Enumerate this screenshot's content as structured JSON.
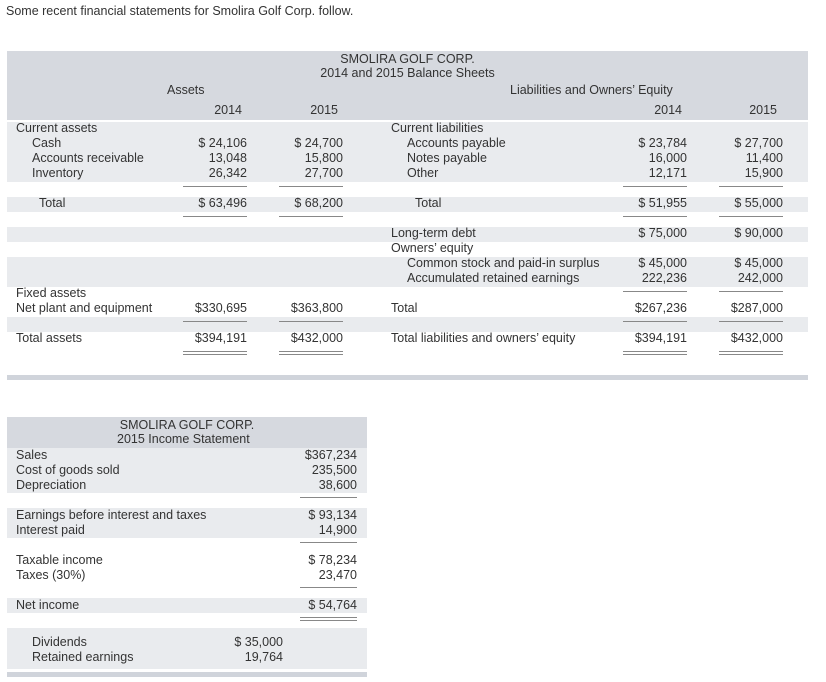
{
  "intro": "Some recent financial statements for Smolira Golf Corp. follow.",
  "balance": {
    "company": "SMOLIRA GOLF CORP.",
    "title": "2014 and 2015 Balance Sheets",
    "assets_header": "Assets",
    "liab_header": "Liabilities and Owners’ Equity",
    "year1": "2014",
    "year2": "2015",
    "current_assets": "Current assets",
    "cash": "Cash",
    "ar": "Accounts receivable",
    "inventory": "Inventory",
    "total": "Total",
    "cash_2014": "$ 24,106",
    "cash_2015": "$ 24,700",
    "ar_2014": "13,048",
    "ar_2015": "15,800",
    "inv_2014": "26,342",
    "inv_2015": "27,700",
    "ca_total_2014": "$ 63,496",
    "ca_total_2015": "$ 68,200",
    "fixed_assets": "Fixed assets",
    "net_plant": "Net plant and equipment",
    "np_2014": "$330,695",
    "np_2015": "$363,800",
    "total_assets": "Total assets",
    "ta_2014": "$394,191",
    "ta_2015": "$432,000",
    "current_liabilities": "Current liabilities",
    "ap": "Accounts payable",
    "np": "Notes payable",
    "other": "Other",
    "ap_2014": "$ 23,784",
    "ap_2015": "$ 27,700",
    "notes_2014": "16,000",
    "notes_2015": "11,400",
    "other_2014": "12,171",
    "other_2015": "15,900",
    "cl_total_2014": "$ 51,955",
    "cl_total_2015": "$ 55,000",
    "ltd": "Long-term debt",
    "ltd_2014": "$ 75,000",
    "ltd_2015": "$ 90,000",
    "owners_equity": "Owners’ equity",
    "common_stock": "Common stock and paid-in surplus",
    "cs_2014": "$ 45,000",
    "cs_2015": "$ 45,000",
    "retained": "Accumulated retained earnings",
    "re_2014": "222,236",
    "re_2015": "242,000",
    "oe_total": "Total",
    "oe_total_2014": "$267,236",
    "oe_total_2015": "$287,000",
    "total_le": "Total liabilities and owners’ equity",
    "tle_2014": "$394,191",
    "tle_2015": "$432,000"
  },
  "income": {
    "company": "SMOLIRA GOLF CORP.",
    "title": "2015 Income Statement",
    "sales": "Sales",
    "cogs": "Cost of goods sold",
    "depreciation": "Depreciation",
    "sales_v": "$367,234",
    "cogs_v": "235,500",
    "dep_v": "38,600",
    "ebit": "Earnings before interest and taxes",
    "interest": "Interest paid",
    "ebit_v": "$ 93,134",
    "int_v": "14,900",
    "taxable": "Taxable income",
    "taxes": "Taxes (30%)",
    "taxable_v": "$ 78,234",
    "taxes_v": "23,470",
    "net_income": "Net income",
    "ni_v": "$ 54,764",
    "dividends": "Dividends",
    "retained": "Retained earnings",
    "div_v": "$ 35,000",
    "ret_v": "19,764"
  }
}
